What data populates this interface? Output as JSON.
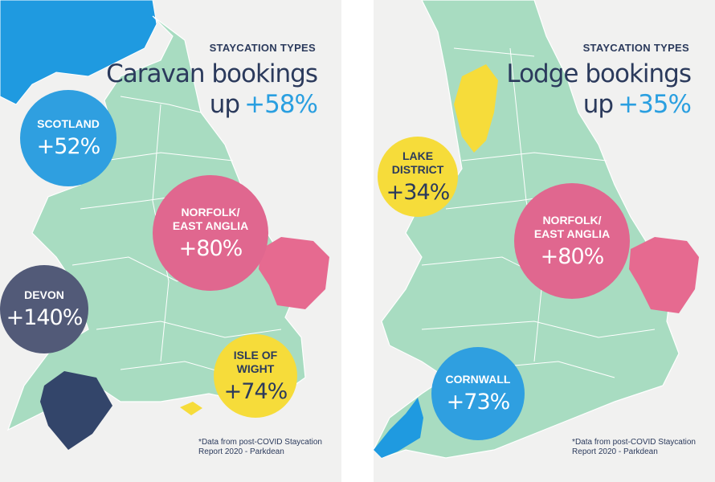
{
  "panels": [
    {
      "kicker": "STAYCATION TYPES",
      "title": "Caravan bookings",
      "subtitle_prefix": "up",
      "subtitle_highlight": "+58%",
      "bubbles": [
        {
          "label": [
            "SCOTLAND"
          ],
          "value": "+52%"
        },
        {
          "label": [
            "NORFOLK/",
            "EAST ANGLIA"
          ],
          "value": "+80%"
        },
        {
          "label": [
            "DEVON"
          ],
          "value": "+140%"
        },
        {
          "label": [
            "ISLE OF",
            "WIGHT"
          ],
          "value": "+74%"
        }
      ],
      "footnote": [
        "*Data from post-COVID Staycation",
        "Report 2020 - Parkdean"
      ]
    },
    {
      "kicker": "STAYCATION TYPES",
      "title": "Lodge bookings",
      "subtitle_prefix": "up",
      "subtitle_highlight": "+35%",
      "bubbles": [
        {
          "label": [
            "LAKE",
            "DISTRICT"
          ],
          "value": "+34%"
        },
        {
          "label": [
            "NORFOLK/",
            "EAST ANGLIA"
          ],
          "value": "+80%"
        },
        {
          "label": [
            "CORNWALL"
          ],
          "value": "+73%"
        }
      ],
      "footnote": [
        "*Data from post-COVID Staycation",
        "Report 2020 - Parkdean"
      ]
    }
  ]
}
